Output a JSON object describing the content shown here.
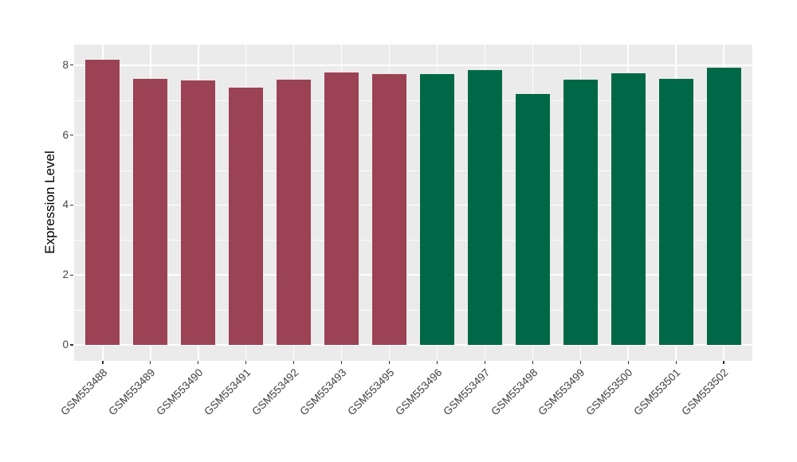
{
  "figure": {
    "background": "#FFFFFF",
    "panel_background": "#EBEBEB",
    "grid_color": "#FFFFFF",
    "axis_text_color": "#454545",
    "axis_title_color": "#000000",
    "tick_color": "#333333"
  },
  "chart_data": {
    "type": "bar",
    "title": "",
    "xlabel": "",
    "ylabel": "Expression Level",
    "categories": [
      "GSM553488",
      "GSM553489",
      "GSM553490",
      "GSM553491",
      "GSM553492",
      "GSM553493",
      "GSM553495",
      "GSM553496",
      "GSM553497",
      "GSM553498",
      "GSM553499",
      "GSM553500",
      "GSM553501",
      "GSM553502"
    ],
    "series": [
      {
        "name": "Expression Level",
        "values": [
          8.16,
          7.61,
          7.56,
          7.36,
          7.59,
          7.8,
          7.74,
          7.74,
          7.86,
          7.17,
          7.58,
          7.77,
          7.61,
          7.93
        ]
      }
    ],
    "bar_colors": [
      "#9B4254",
      "#9B4254",
      "#9B4254",
      "#9B4254",
      "#9B4254",
      "#9B4254",
      "#9B4254",
      "#006847",
      "#006847",
      "#006847",
      "#006847",
      "#006847",
      "#006847",
      "#006847"
    ],
    "group_colors": {
      "left_group": "#9B4254",
      "right_group": "#006847"
    },
    "yticks": [
      0,
      2,
      4,
      6,
      8
    ],
    "ylim": [
      0,
      8.16
    ],
    "y_axis_expansion": 0.05,
    "grid": "on",
    "legend": "none",
    "x_label_rotation_deg": 45
  }
}
